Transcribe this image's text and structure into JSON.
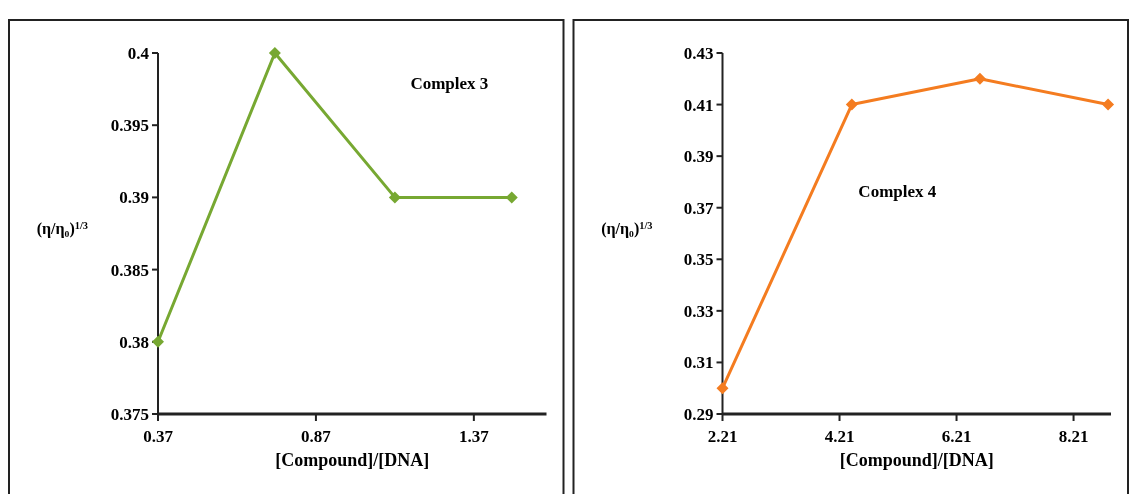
{
  "chart_data": [
    {
      "type": "line",
      "xlabel": "[Compound]/[DNA]",
      "ylabel": "(η/η₀)$^{1/3}$",
      "x": [
        0.37,
        0.74,
        1.12,
        1.49
      ],
      "xlim": [
        0.37,
        1.6
      ],
      "xticks": [
        0.37,
        0.87,
        1.37
      ],
      "ylim": [
        0.375,
        0.4
      ],
      "yticks": [
        0.375,
        0.38,
        0.385,
        0.39,
        0.395,
        {
          "value": 0.4,
          "label": "0.4"
        }
      ],
      "marker": "diamond",
      "grid": false,
      "series": [
        {
          "name": "Complex 3",
          "color": "#77a832",
          "values": [
            0.38,
            0.4,
            0.39,
            0.39
          ]
        }
      ]
    },
    {
      "type": "line",
      "xlabel": "[Compound]/[DNA]",
      "ylabel": "(η/η₀)$^{1/3}$",
      "x": [
        2.21,
        4.42,
        6.61,
        8.8
      ],
      "xlim": [
        2.21,
        8.85
      ],
      "xticks": [
        2.21,
        4.21,
        6.21,
        8.21
      ],
      "ylim": [
        0.29,
        0.43
      ],
      "yticks": [
        0.29,
        0.31,
        0.33,
        0.35,
        0.37,
        0.39,
        0.41,
        0.43
      ],
      "marker": "diamond",
      "grid": false,
      "series": [
        {
          "name": "Complex 4",
          "color": "#f47c20",
          "values": [
            0.3,
            0.41,
            0.42,
            0.41
          ]
        }
      ]
    }
  ]
}
